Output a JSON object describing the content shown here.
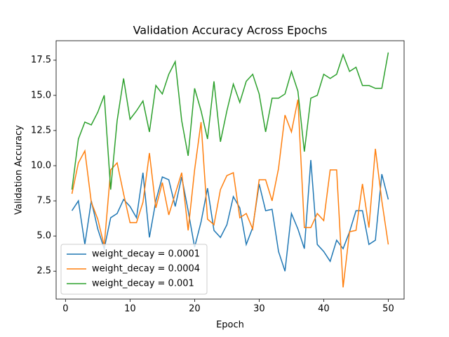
{
  "chart_data": {
    "type": "line",
    "title": "Validation Accuracy Across Epochs",
    "xlabel": "Epoch",
    "ylabel": "Validation Accuracy",
    "x": [
      1,
      2,
      3,
      4,
      5,
      6,
      7,
      8,
      9,
      10,
      11,
      12,
      13,
      14,
      15,
      16,
      17,
      18,
      19,
      20,
      21,
      22,
      23,
      24,
      25,
      26,
      27,
      28,
      29,
      30,
      31,
      32,
      33,
      34,
      35,
      36,
      37,
      38,
      39,
      40,
      41,
      42,
      43,
      44,
      45,
      46,
      47,
      48,
      49,
      50
    ],
    "series": [
      {
        "name": "weight_decay = 0.0001",
        "color": "#1f77b4",
        "values": [
          6.8,
          7.5,
          4.4,
          7.5,
          5.5,
          4.1,
          6.3,
          6.6,
          7.6,
          7.1,
          6.3,
          9.5,
          4.9,
          7.5,
          9.2,
          9.0,
          7.1,
          9.2,
          6.8,
          4.2,
          6.0,
          8.4,
          5.4,
          4.9,
          5.8,
          7.8,
          7.0,
          4.4,
          5.6,
          8.7,
          6.8,
          6.9,
          3.9,
          2.5,
          6.6,
          5.5,
          4.1,
          10.4,
          4.4,
          3.9,
          3.2,
          4.7,
          4.1,
          5.3,
          6.8,
          6.8,
          4.4,
          4.7,
          9.4,
          7.6
        ]
      },
      {
        "name": "weight_decay = 0.0004",
        "color": "#ff7f0e",
        "values": [
          8.0,
          10.2,
          11.05,
          7.4,
          6.2,
          4.3,
          9.7,
          10.2,
          8.0,
          5.95,
          5.95,
          7.4,
          10.9,
          7.0,
          8.8,
          6.5,
          8.0,
          9.5,
          5.4,
          9.7,
          13.1,
          6.2,
          5.8,
          8.3,
          9.3,
          9.5,
          6.3,
          6.6,
          5.5,
          9.0,
          9.0,
          7.5,
          9.8,
          13.6,
          12.4,
          14.7,
          5.6,
          5.6,
          6.6,
          6.1,
          9.7,
          9.7,
          1.35,
          5.3,
          5.4,
          8.7,
          5.6,
          11.2,
          7.5,
          4.4
        ]
      },
      {
        "name": "weight_decay = 0.001",
        "color": "#2ca02c",
        "values": [
          8.3,
          11.9,
          13.1,
          12.9,
          13.8,
          15.0,
          8.3,
          13.2,
          16.2,
          13.3,
          13.9,
          14.6,
          12.4,
          15.7,
          15.1,
          16.5,
          17.4,
          13.2,
          10.7,
          15.5,
          13.9,
          11.9,
          16.0,
          11.7,
          13.9,
          15.8,
          14.5,
          16.0,
          16.5,
          15.1,
          12.4,
          14.8,
          14.8,
          15.1,
          16.7,
          15.3,
          11.0,
          14.8,
          15.0,
          16.5,
          16.2,
          16.5,
          17.9,
          16.7,
          17.0,
          15.7,
          15.7,
          15.5,
          15.5,
          18.05
        ]
      }
    ],
    "xlim": [
      -1.45,
      52.45
    ],
    "xticks": [
      0,
      10,
      20,
      30,
      40,
      50
    ],
    "ylim": [
      0.515,
      18.885
    ],
    "yticks": [
      2.5,
      {
        "value": 5.0,
        "label": "5.0"
      },
      7.5,
      {
        "value": 10.0,
        "label": "10.0"
      },
      12.5,
      {
        "value": 15.0,
        "label": "15.0"
      },
      17.5
    ],
    "legend": "lower left",
    "grid": false
  }
}
